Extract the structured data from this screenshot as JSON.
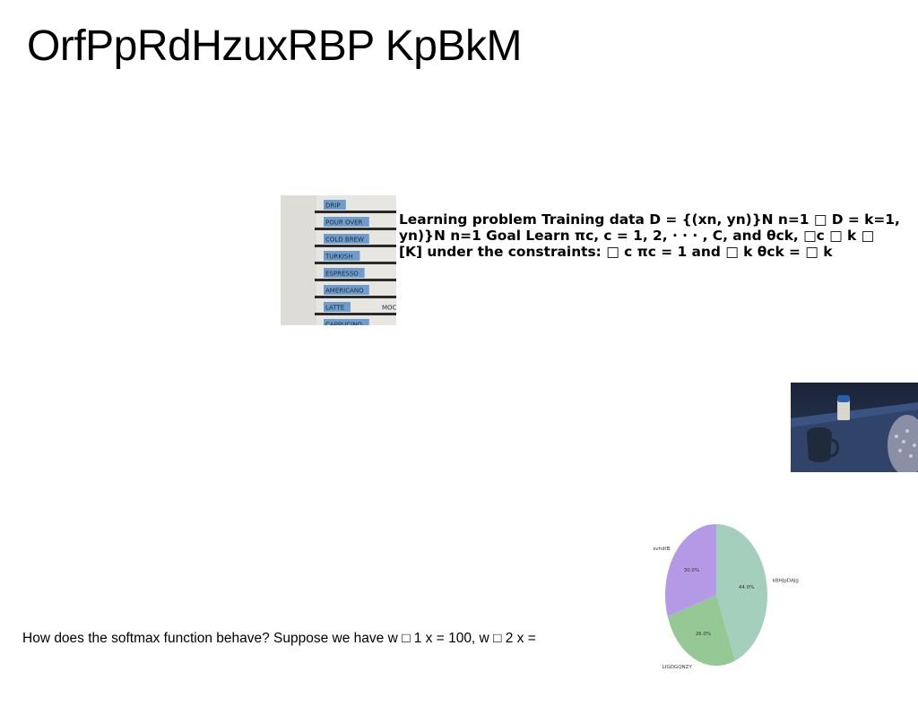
{
  "title": "OrfPpRdHzuxRBP KpBkM",
  "text_block": "Learning problem Training data D = {(xn, yn)}N n=1 □ D = k=1, yn)}N n=1 Goal Learn πc, c = 1, 2, · · · , C, and θck, □c □ k □ [K] under the constraints: □ c πc = 1 and □ k θck = □ k",
  "question": "How does the softmax function behave? Suppose we have w □ 1 x = 100, w □ 2 x =",
  "menu_board": {
    "items": [
      "DRIP",
      "POUR OVER",
      "COLD BREW",
      "TURKISH",
      "ESPRESSO",
      "AMERICANO",
      "LATTE",
      "CAPPUCINO"
    ],
    "extra": "MOC"
  },
  "chart_data": {
    "type": "pie",
    "slices": [
      {
        "label": "kBHJpDAJg",
        "value": 44.0,
        "pct_label": "44.0%",
        "color": "#a3cfbc"
      },
      {
        "label": "LIGDGQNZY",
        "value": 26.0,
        "pct_label": "26.0%",
        "color": "#96c896"
      },
      {
        "label": "svhdtB",
        "value": 30.0,
        "pct_label": "30.0%",
        "color": "#b49ae6"
      }
    ],
    "start_angle_deg": 90,
    "direction": "clockwise"
  }
}
